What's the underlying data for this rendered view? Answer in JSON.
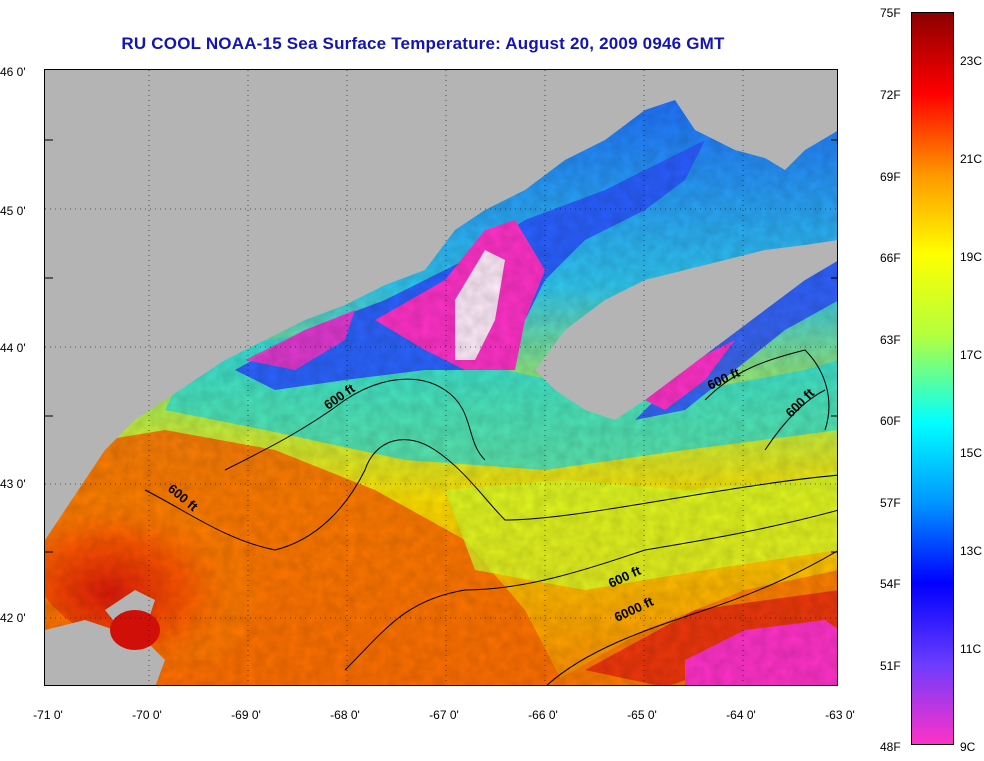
{
  "title": "RU COOL  NOAA-15  Sea Surface Temperature:  August 20, 2009 0946 GMT",
  "map": {
    "lat_labels": [
      "46 0'",
      "45 0'",
      "44 0'",
      "43 0'",
      "42 0'"
    ],
    "lon_labels": [
      "-71 0'",
      "-70 0'",
      "-69 0'",
      "-68 0'",
      "-67 0'",
      "-66 0'",
      "-65 0'",
      "-64 0'",
      "-63 0'"
    ],
    "lat_range": [
      41.5,
      46.0
    ],
    "lon_range": [
      -71.0,
      -63.0
    ],
    "contour_labels": [
      "600 ft",
      "600 ft",
      "600 ft",
      "600 ft",
      "600 ft",
      "6000 ft"
    ],
    "land_color": "#b4b4b4"
  },
  "colorbar": {
    "fahrenheit": [
      "75F",
      "72F",
      "69F",
      "66F",
      "63F",
      "60F",
      "57F",
      "54F",
      "51F",
      "48F"
    ],
    "celsius": [
      "23C",
      "21C",
      "19C",
      "17C",
      "15C",
      "13C",
      "11C",
      "9C"
    ],
    "range_f": [
      48,
      75
    ],
    "colors": [
      "#ff32c8",
      "#6b3cff",
      "#0000ff",
      "#0096ff",
      "#00ffff",
      "#b4ff3c",
      "#ffff00",
      "#ff9600",
      "#ff0000",
      "#8b0000"
    ]
  }
}
